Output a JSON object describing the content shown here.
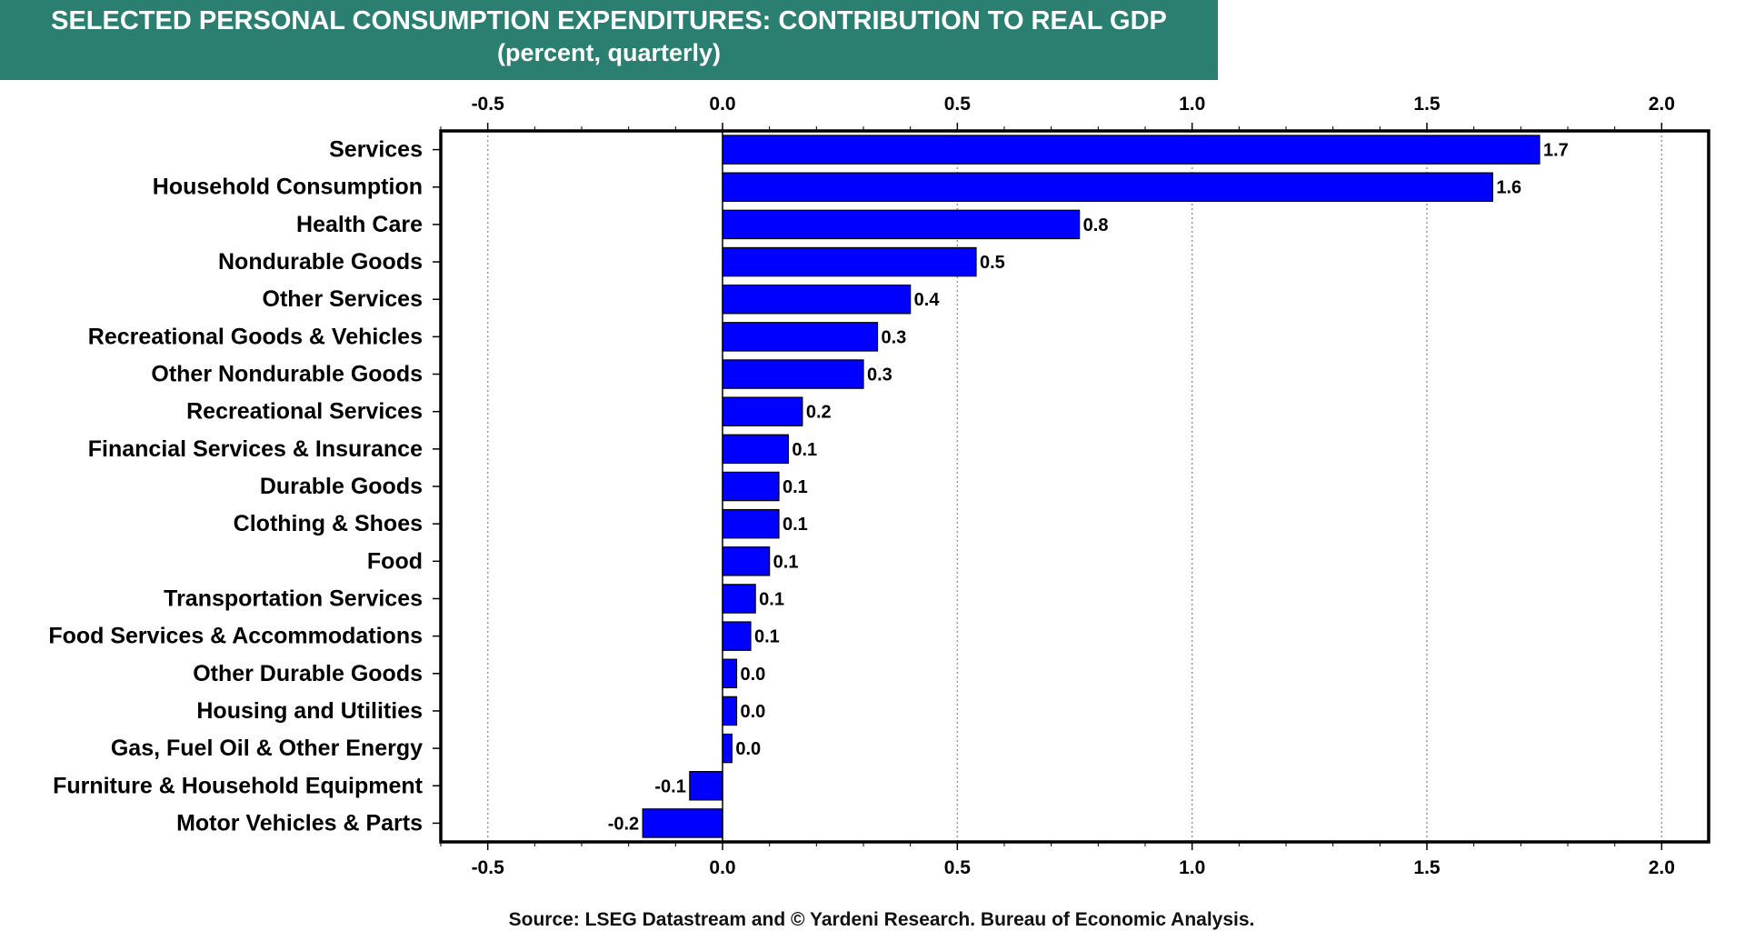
{
  "header": {
    "title_line1": "SELECTED PERSONAL CONSUMPTION EXPENDITURES: CONTRIBUTION TO REAL GDP",
    "title_line2": "(percent, quarterly)"
  },
  "footer": {
    "source": "Source: LSEG Datastream and © Yardeni Research. Bureau of Economic Analysis."
  },
  "colors": {
    "banner": "#2a7f71",
    "bar": "#0000ff",
    "grid": "#999999"
  },
  "chart_data": {
    "type": "bar",
    "orientation": "horizontal",
    "title": "SELECTED PERSONAL CONSUMPTION EXPENDITURES: CONTRIBUTION TO REAL GDP",
    "subtitle": "(percent, quarterly)",
    "xlim": [
      -0.6,
      2.1
    ],
    "xticks": [
      -0.5,
      0.0,
      0.5,
      1.0,
      1.5,
      2.0
    ],
    "xtick_labels": [
      "-0.5",
      "0.0",
      "0.5",
      "1.0",
      "1.5",
      "2.0"
    ],
    "grid": "vertical dotted",
    "categories": [
      "Services",
      "Household Consumption ",
      "Health Care",
      "Nondurable Goods",
      "Other Services",
      "Recreational Goods & Vehicles",
      "Other Nondurable Goods",
      "Recreational Services",
      "Financial Services & Insurance",
      "Durable Goods",
      "Clothing & Shoes",
      "Food",
      "Transportation Services",
      "Food Services & Accommodations ",
      "Other Durable Goods",
      "Housing and Utilities",
      "Gas, Fuel Oil & Other Energy",
      "Furniture & Household Equipment",
      "Motor Vehicles & Parts"
    ],
    "values": [
      1.74,
      1.64,
      0.76,
      0.54,
      0.4,
      0.33,
      0.3,
      0.17,
      0.14,
      0.12,
      0.12,
      0.1,
      0.07,
      0.06,
      0.03,
      0.03,
      0.02,
      -0.07,
      -0.17
    ],
    "value_labels": [
      "1.7",
      "1.6",
      "0.8",
      "0.5",
      "0.4",
      "0.3",
      "0.3",
      "0.2",
      "0.1",
      "0.1",
      "0.1",
      "0.1",
      "0.1",
      "0.1",
      "0.0",
      "0.0",
      "0.0",
      "-0.1",
      "-0.2"
    ]
  }
}
